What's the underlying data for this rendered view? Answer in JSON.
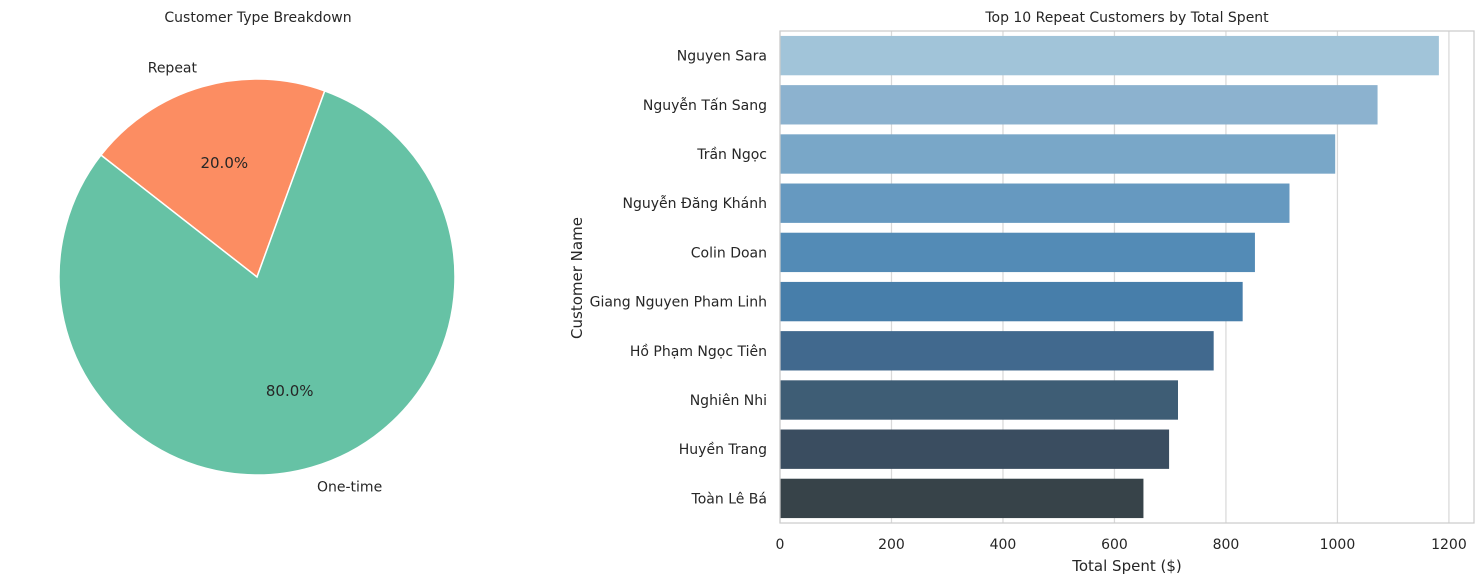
{
  "chart_data": [
    {
      "type": "pie",
      "title": "Customer Type Breakdown",
      "slices": [
        {
          "label": "Repeat",
          "value": 20.0,
          "pct_label": "20.0%",
          "color": "#fc8d62"
        },
        {
          "label": "One-time",
          "value": 80.0,
          "pct_label": "80.0%",
          "color": "#66c2a5"
        }
      ],
      "start_angle_deg": 70
    },
    {
      "type": "bar",
      "orientation": "horizontal",
      "title": "Top 10 Repeat Customers by Total Spent",
      "xlabel": "Total Spent ($)",
      "ylabel": "Customer Name",
      "xlim": [
        0,
        1245
      ],
      "xticks": [
        0,
        200,
        400,
        600,
        800,
        1000,
        1200
      ],
      "grid": true,
      "categories": [
        "Nguyen Sara",
        "Nguyễn Tấn Sang",
        "Trần Ngọc",
        "Nguyễn Đăng Khánh",
        "Colin Doan",
        "Giang Nguyen Pham Linh",
        "Hồ Phạm Ngọc Tiên",
        "Nghiên Nhi",
        "Huyền Trang",
        "Toàn Lê Bá"
      ],
      "values": [
        1182,
        1072,
        996,
        914,
        852,
        830,
        778,
        714,
        698,
        652
      ],
      "colors": [
        "#a1c4d9",
        "#8cb2cf",
        "#79a7c8",
        "#6699c0",
        "#538bb6",
        "#477eaa",
        "#41698e",
        "#3e5d75",
        "#3a4d60",
        "#374349"
      ]
    }
  ]
}
